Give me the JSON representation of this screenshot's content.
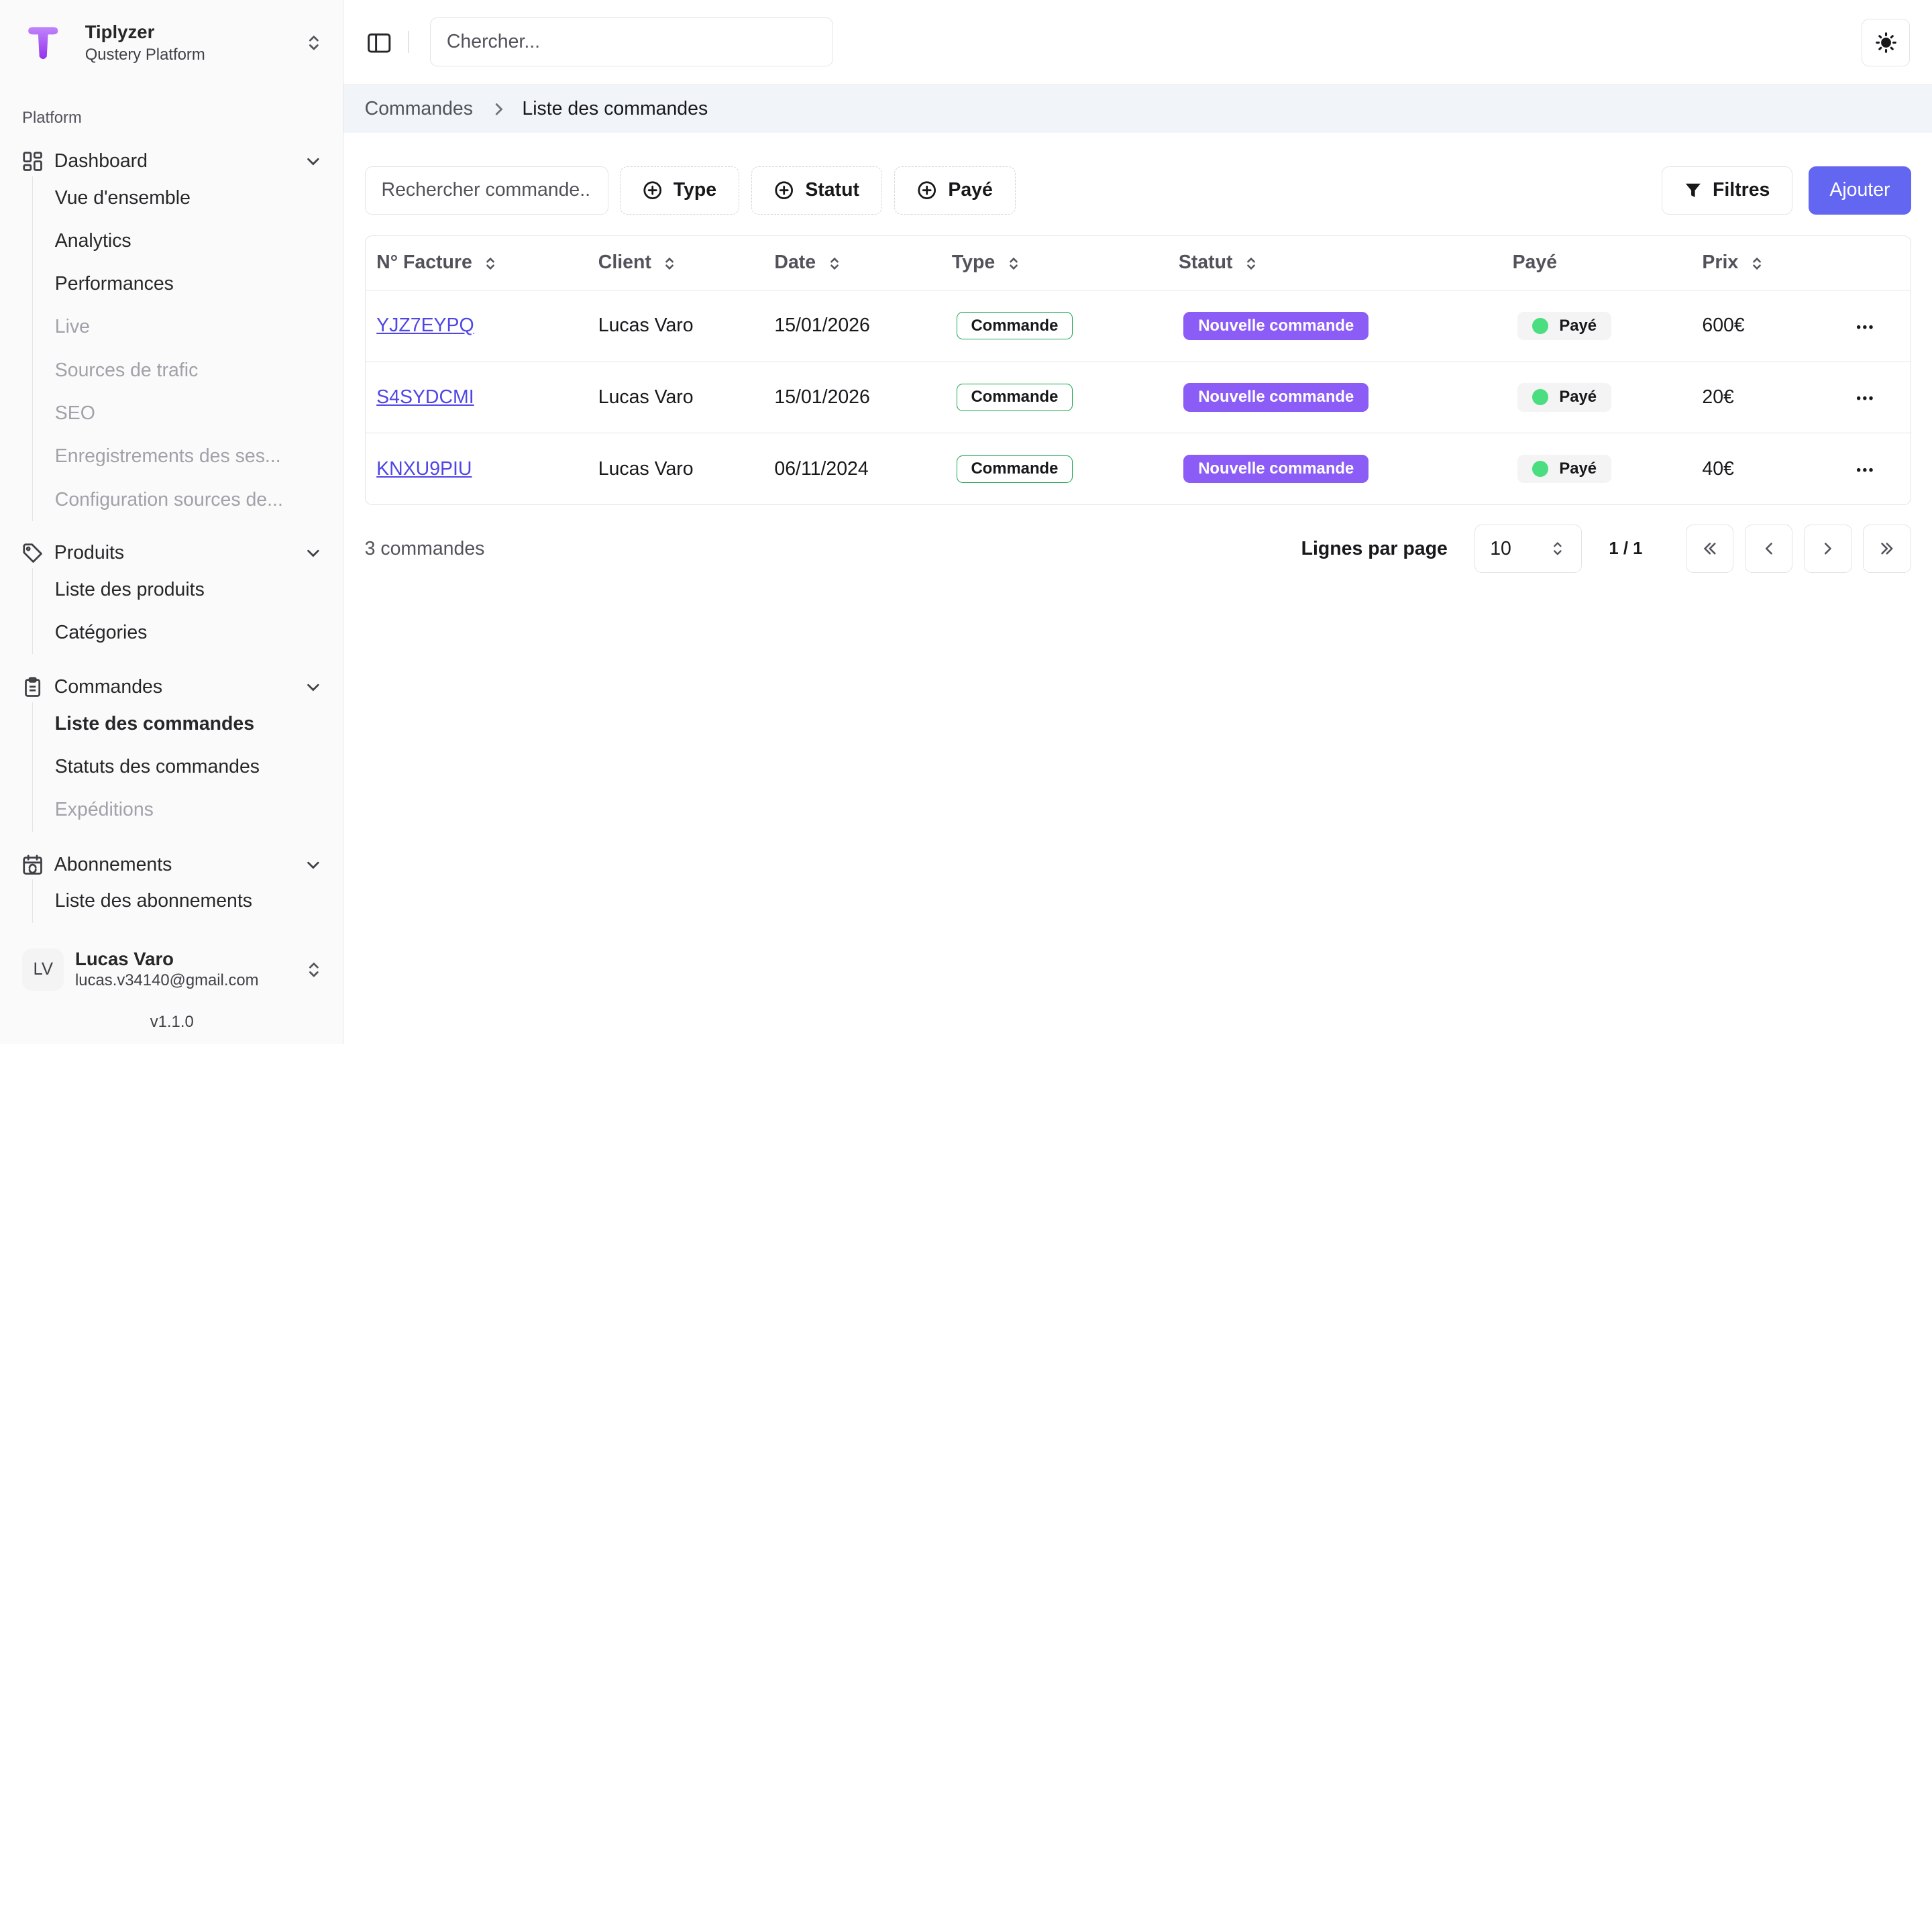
{
  "brand": {
    "name": "Tiplyzer",
    "subtitle": "Qustery Platform"
  },
  "sidebar": {
    "section_label": "Platform",
    "groups": [
      {
        "label": "Dashboard",
        "icon": "dashboard-icon",
        "items": [
          {
            "label": "Vue d'ensemble",
            "muted": false
          },
          {
            "label": "Analytics",
            "muted": false
          },
          {
            "label": "Performances",
            "muted": false
          },
          {
            "label": "Live",
            "muted": true
          },
          {
            "label": "Sources de trafic",
            "muted": true
          },
          {
            "label": "SEO",
            "muted": true
          },
          {
            "label": "Enregistrements des ses...",
            "muted": true
          },
          {
            "label": "Configuration sources de...",
            "muted": true
          }
        ]
      },
      {
        "label": "Produits",
        "icon": "tag-icon",
        "items": [
          {
            "label": "Liste des produits",
            "muted": false
          },
          {
            "label": "Catégories",
            "muted": false
          }
        ]
      },
      {
        "label": "Commandes",
        "icon": "clipboard-icon",
        "items": [
          {
            "label": "Liste des commandes",
            "active": true
          },
          {
            "label": "Statuts des commandes",
            "muted": false
          },
          {
            "label": "Expéditions",
            "muted": true
          }
        ]
      },
      {
        "label": "Abonnements",
        "icon": "calendar-sync-icon",
        "items": [
          {
            "label": "Liste des abonnements",
            "muted": false
          }
        ]
      }
    ]
  },
  "user": {
    "initials": "LV",
    "name": "Lucas Varo",
    "email": "lucas.v34140@gmail.com"
  },
  "version": "v1.1.0",
  "topbar": {
    "search_placeholder": "Chercher..."
  },
  "breadcrumb": {
    "parent": "Commandes",
    "current": "Liste des commandes"
  },
  "toolbar": {
    "search_placeholder": "Rechercher commande...",
    "chips": [
      "Type",
      "Statut",
      "Payé"
    ],
    "filters_label": "Filtres",
    "add_label": "Ajouter"
  },
  "table": {
    "columns": [
      {
        "label": "N° Facture",
        "sortable": true
      },
      {
        "label": "Client",
        "sortable": true
      },
      {
        "label": "Date",
        "sortable": true
      },
      {
        "label": "Type",
        "sortable": true
      },
      {
        "label": "Statut",
        "sortable": true
      },
      {
        "label": "Payé",
        "sortable": false
      },
      {
        "label": "Prix",
        "sortable": true
      }
    ],
    "rows": [
      {
        "invoice": "YJZ7EYPQ",
        "client": "Lucas Varo",
        "date": "15/01/2026",
        "type": "Commande",
        "status": "Nouvelle commande",
        "paid": "Payé",
        "price": "600€"
      },
      {
        "invoice": "S4SYDCMI",
        "client": "Lucas Varo",
        "date": "15/01/2026",
        "type": "Commande",
        "status": "Nouvelle commande",
        "paid": "Payé",
        "price": "20€"
      },
      {
        "invoice": "KNXU9PIU",
        "client": "Lucas Varo",
        "date": "06/11/2024",
        "type": "Commande",
        "status": "Nouvelle commande",
        "paid": "Payé",
        "price": "40€"
      }
    ]
  },
  "pagination": {
    "count_label": "3 commandes",
    "rows_per_page_label": "Lignes par page",
    "rows_per_page": "10",
    "page_indicator": "1 / 1"
  },
  "colors": {
    "primary": "#6366f1",
    "status_badge": "#8b5cf6",
    "type_border": "#16a34a",
    "paid_dot": "#4ade80",
    "breadcrumb_bg": "#f1f5f9"
  }
}
